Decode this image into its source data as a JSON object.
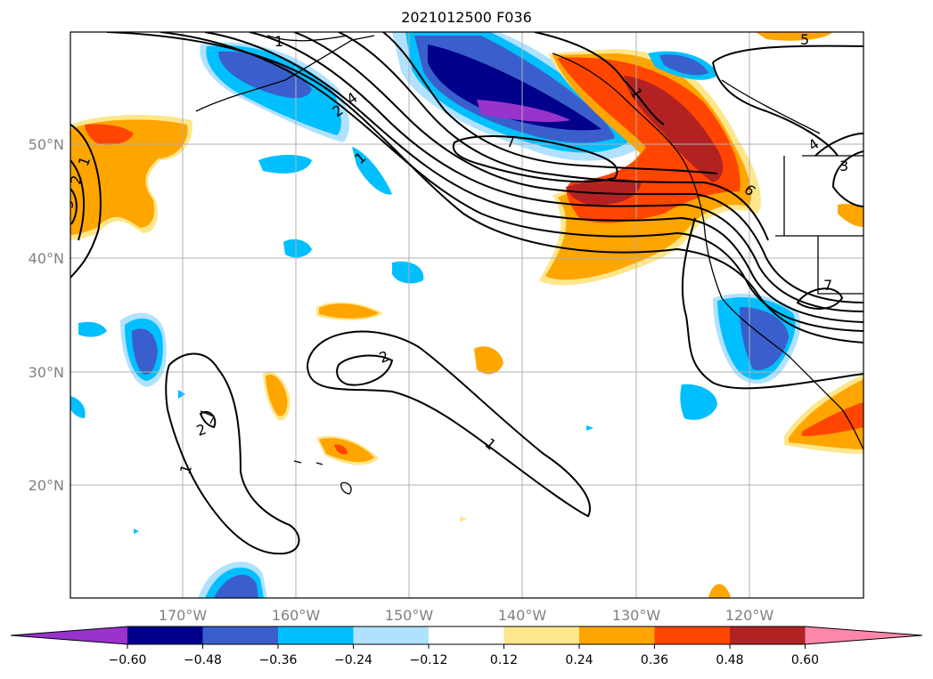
{
  "title": "2021012500 F036",
  "lat_labels": [
    "50°N",
    "40°N",
    "30°N",
    "20°N"
  ],
  "lon_labels": [
    "170°W",
    "160°W",
    "150°W",
    "140°W",
    "130°W",
    "120°W"
  ],
  "colorbar": {
    "colors": [
      "#9933cc",
      "#00008b",
      "#3a5fcd",
      "#00bfff",
      "#b0e2ff",
      "#ffffff",
      "#fee68b",
      "#ffa500",
      "#ff4500",
      "#b22222",
      "#ff88aa"
    ],
    "ticks": [
      "−0.60",
      "−0.48",
      "−0.36",
      "−0.24",
      "−0.12",
      "0.12",
      "0.24",
      "0.36",
      "0.48",
      "0.60"
    ]
  },
  "contour_labels": [
    "1",
    "2",
    "3",
    "1",
    "2",
    "4",
    "1",
    "7",
    "1",
    "5",
    "4",
    "3",
    "6",
    "7",
    "2",
    "2",
    "1",
    "1"
  ]
}
